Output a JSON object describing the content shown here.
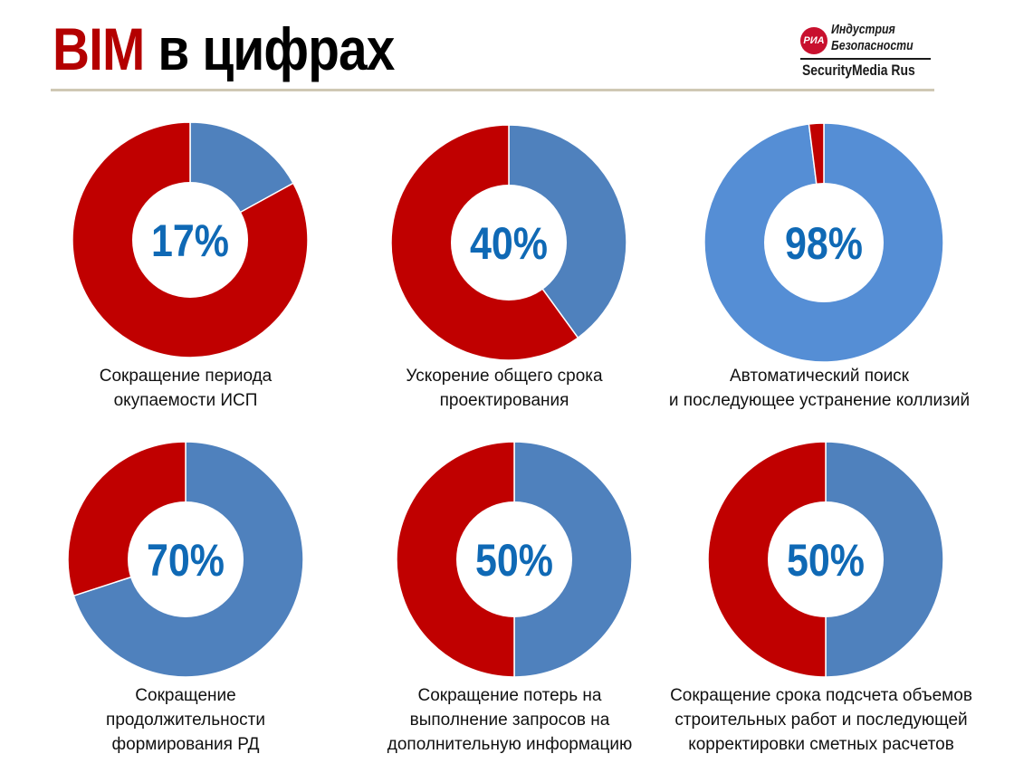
{
  "header": {
    "title_accent": "BIM",
    "title_rest": " в цифрах",
    "logo": {
      "badge": "РИА",
      "line1": "Индустрия",
      "line2": "Безопасности",
      "bottom": "SecurityMedia Rus"
    }
  },
  "colors": {
    "red": "#c00000",
    "blue": "#4f81bd",
    "light_blue": "#558ed5",
    "percent_text": "#0f69b5",
    "title_accent": "#b40000"
  },
  "chart_data": [
    {
      "type": "pie",
      "label": "17%",
      "caption": [
        "Сокращение периода",
        "окупаемости ИСП"
      ],
      "slices": [
        {
          "share": 17,
          "color": "#4f81bd"
        },
        {
          "share": 83,
          "color": "#c00000"
        }
      ]
    },
    {
      "type": "pie",
      "label": "40%",
      "caption": [
        "Ускорение общего срока",
        "проектирования"
      ],
      "slices": [
        {
          "share": 40,
          "color": "#4f81bd"
        },
        {
          "share": 60,
          "color": "#c00000"
        }
      ]
    },
    {
      "type": "pie",
      "label": "98%",
      "caption": [
        "Автоматический поиск",
        "и последующее устранение коллизий"
      ],
      "slices": [
        {
          "share": 98,
          "color": "#558ed5"
        },
        {
          "share": 2,
          "color": "#c00000"
        }
      ]
    },
    {
      "type": "pie",
      "label": "70%",
      "caption": [
        "Сокращение",
        "продолжительности",
        "формирования РД"
      ],
      "slices": [
        {
          "share": 70,
          "color": "#4f81bd"
        },
        {
          "share": 30,
          "color": "#c00000"
        }
      ]
    },
    {
      "type": "pie",
      "label": "50%",
      "caption": [
        "Сокращение потерь на",
        "выполнение запросов на",
        "дополнительную информацию"
      ],
      "slices": [
        {
          "share": 50,
          "color": "#4f81bd"
        },
        {
          "share": 50,
          "color": "#c00000"
        }
      ]
    },
    {
      "type": "pie",
      "label": "50%",
      "caption": [
        "Сокращение срока подсчета объемов",
        "строительных работ и последующей",
        "корректировки сметных расчетов"
      ],
      "slices": [
        {
          "share": 50,
          "color": "#4f81bd"
        },
        {
          "share": 50,
          "color": "#c00000"
        }
      ]
    }
  ]
}
